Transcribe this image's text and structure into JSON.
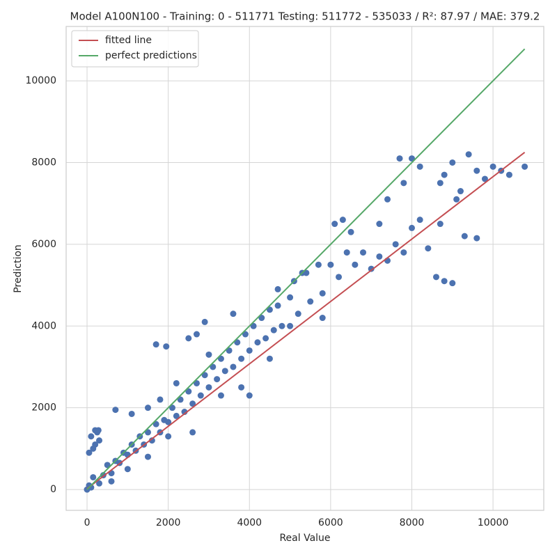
{
  "chart_data": {
    "type": "scatter",
    "title": "Model A100N100 - Training: 0 - 511771 Testing: 511772 - 535033 / R²: 87.97 / MAE: 379.2",
    "x_label": "Real Value",
    "y_label": "Prediction",
    "xlim": [
      -515,
      11250
    ],
    "ylim": [
      -510,
      11330
    ],
    "xticks": [
      0,
      2000,
      4000,
      6000,
      8000,
      10000
    ],
    "yticks": [
      0,
      2000,
      4000,
      6000,
      8000,
      10000
    ],
    "grid": true,
    "legend": "upper left",
    "points": {
      "color": "#4c72b0",
      "x": [
        0,
        50,
        100,
        150,
        200,
        250,
        100,
        300,
        200,
        50,
        280,
        150,
        400,
        500,
        600,
        700,
        800,
        900,
        1000,
        1100,
        1200,
        1300,
        1400,
        1500,
        1600,
        1700,
        1800,
        1900,
        2000,
        2100,
        2200,
        2300,
        2400,
        2500,
        2600,
        2700,
        2800,
        2900,
        3000,
        3100,
        3200,
        3300,
        3400,
        3500,
        3600,
        3700,
        3800,
        3900,
        4000,
        4100,
        4200,
        4300,
        4400,
        4500,
        4600,
        4700,
        4800,
        5000,
        5200,
        5400,
        5500,
        5700,
        5800,
        6000,
        6200,
        6400,
        6600,
        6800,
        7000,
        7200,
        7400,
        7600,
        7800,
        8000,
        8200,
        8400,
        8600,
        8800,
        9000,
        8700,
        9300,
        9600,
        7700,
        8000,
        8200,
        8800,
        9000,
        9200,
        9400,
        9600,
        9800,
        10000,
        10200,
        10400,
        10780,
        9100,
        8700,
        7800,
        7400,
        7200,
        6300,
        6500,
        6100,
        5300,
        5100,
        2500,
        1700,
        1950,
        2700,
        2900,
        3000,
        4700,
        3600,
        700,
        1100,
        1500,
        1800,
        4500,
        5000,
        5800,
        3800,
        4000,
        2000,
        1000,
        600,
        300,
        1500,
        2600,
        3300,
        2200
      ],
      "values": [
        0,
        100,
        50,
        300,
        1450,
        1400,
        1300,
        1200,
        1100,
        900,
        1450,
        1000,
        350,
        600,
        400,
        700,
        650,
        900,
        850,
        1100,
        950,
        1300,
        1100,
        1400,
        1200,
        1600,
        1400,
        1700,
        1650,
        2000,
        1800,
        2200,
        1900,
        2400,
        2100,
        2600,
        2300,
        2800,
        2500,
        3000,
        2700,
        3200,
        2900,
        3400,
        3000,
        3600,
        3200,
        3800,
        3400,
        4000,
        3600,
        4200,
        3700,
        4400,
        3900,
        4500,
        4000,
        4700,
        4300,
        5300,
        4600,
        5500,
        4800,
        5500,
        5200,
        5800,
        5500,
        5800,
        5400,
        5700,
        5600,
        6000,
        5800,
        6400,
        6600,
        5900,
        5200,
        5100,
        5050,
        6500,
        6200,
        6150,
        8100,
        8100,
        7900,
        7700,
        8000,
        7300,
        8200,
        7800,
        7600,
        7900,
        7800,
        7700,
        7900,
        7100,
        7500,
        7500,
        7100,
        6500,
        6600,
        6300,
        6500,
        5300,
        5100,
        3700,
        3550,
        3500,
        3800,
        4100,
        3300,
        4900,
        4300,
        1950,
        1850,
        2000,
        2200,
        3200,
        4000,
        4200,
        2500,
        2300,
        1300,
        500,
        200,
        150,
        800,
        1400,
        2300,
        2600
      ]
    },
    "lines": [
      {
        "name": "fitted line",
        "color": "#c44e52",
        "x": [
          0,
          10780
        ],
        "values": [
          20,
          8250
        ]
      },
      {
        "name": "perfect predictions",
        "color": "#55a868",
        "x": [
          0,
          10780
        ],
        "values": [
          0,
          10780
        ]
      }
    ]
  }
}
